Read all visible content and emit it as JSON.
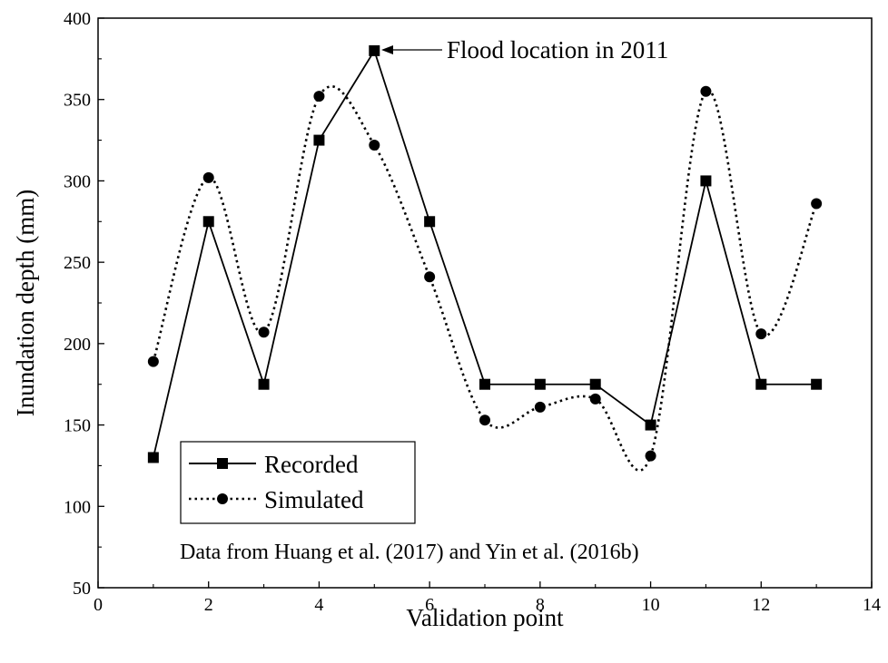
{
  "chart_data": {
    "type": "line",
    "title": "",
    "xlabel": "Validation point",
    "ylabel": "Inundation depth (mm)",
    "xlim": [
      0,
      14
    ],
    "ylim": [
      50,
      400
    ],
    "xticks": [
      0,
      2,
      4,
      6,
      8,
      10,
      12,
      14
    ],
    "yticks": [
      50,
      100,
      150,
      200,
      250,
      300,
      350,
      400
    ],
    "grid": false,
    "legend_position": "lower-left",
    "series": [
      {
        "name": "Recorded",
        "style": "solid",
        "marker": "square",
        "color": "#000000",
        "x": [
          1,
          2,
          3,
          4,
          5,
          6,
          7,
          8,
          9,
          10,
          11,
          12,
          13
        ],
        "values": [
          130,
          275,
          175,
          325,
          380,
          275,
          175,
          175,
          175,
          150,
          300,
          175,
          175
        ]
      },
      {
        "name": "Simulated",
        "style": "dotted",
        "marker": "circle",
        "color": "#000000",
        "x": [
          1,
          2,
          3,
          4,
          5,
          6,
          7,
          8,
          9,
          10,
          11,
          12,
          13
        ],
        "values": [
          189,
          302,
          207,
          352,
          322,
          241,
          153,
          161,
          166,
          131,
          355,
          206,
          286
        ]
      }
    ],
    "annotations": [
      {
        "text": "Flood location in 2011",
        "x": 5,
        "y": 380
      },
      {
        "text": "Data from Huang et al. (2017) and Yin et al. (2016b)"
      }
    ]
  }
}
